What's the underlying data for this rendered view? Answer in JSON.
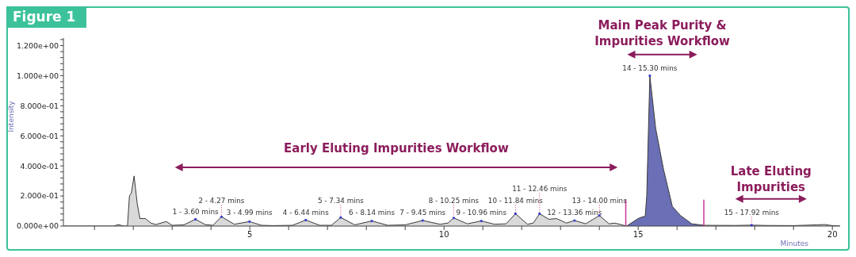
{
  "chart_data": {
    "type": "area",
    "title": "Figure 1",
    "xlabel": "Minutes",
    "ylabel": "Intensity",
    "xlim": [
      0.2,
      20.2
    ],
    "ylim": [
      0,
      1.25
    ],
    "xticks": [
      {
        "value": 1,
        "label": null
      },
      {
        "value": 2,
        "label": null
      },
      {
        "value": 3,
        "label": null
      },
      {
        "value": 4,
        "label": null
      },
      5,
      {
        "value": 6,
        "label": null
      },
      {
        "value": 7,
        "label": null
      },
      {
        "value": 8,
        "label": null
      },
      {
        "value": 9,
        "label": null
      },
      10,
      {
        "value": 11,
        "label": null
      },
      {
        "value": 12,
        "label": null
      },
      {
        "value": 13,
        "label": null
      },
      {
        "value": 14,
        "label": null
      },
      15,
      {
        "value": 16,
        "label": null
      },
      {
        "value": 17,
        "label": null
      },
      {
        "value": 18,
        "label": null
      },
      {
        "value": 19,
        "label": null
      },
      20
    ],
    "yticks": [
      {
        "value": 0,
        "label": "0.000e+00"
      },
      {
        "value": 0.04,
        "label": null
      },
      {
        "value": 0.08,
        "label": null
      },
      {
        "value": 0.12,
        "label": null
      },
      {
        "value": 0.16,
        "label": null
      },
      {
        "value": 0.2,
        "label": "2.000e-01"
      },
      {
        "value": 0.24,
        "label": null
      },
      {
        "value": 0.28,
        "label": null
      },
      {
        "value": 0.32,
        "label": null
      },
      {
        "value": 0.36,
        "label": null
      },
      {
        "value": 0.4,
        "label": "4.000e-01"
      },
      {
        "value": 0.44,
        "label": null
      },
      {
        "value": 0.48,
        "label": null
      },
      {
        "value": 0.52,
        "label": null
      },
      {
        "value": 0.56,
        "label": null
      },
      {
        "value": 0.6,
        "label": "6.000e-01"
      },
      {
        "value": 0.64,
        "label": null
      },
      {
        "value": 0.68,
        "label": null
      },
      {
        "value": 0.72,
        "label": null
      },
      {
        "value": 0.76,
        "label": null
      },
      {
        "value": 0.8,
        "label": "8.000e-01"
      },
      {
        "value": 0.84,
        "label": null
      },
      {
        "value": 0.88,
        "label": null
      },
      {
        "value": 0.92,
        "label": null
      },
      {
        "value": 0.96,
        "label": null
      },
      {
        "value": 1.0,
        "label": "1.000e+00"
      },
      {
        "value": 1.04,
        "label": null
      },
      {
        "value": 1.08,
        "label": null
      },
      {
        "value": 1.12,
        "label": null
      },
      {
        "value": 1.16,
        "label": null
      },
      {
        "value": 1.2,
        "label": "1.200e+00"
      },
      {
        "value": 1.24,
        "label": null
      }
    ],
    "series": [
      {
        "color": "#d9d9d9",
        "x": [
          0.2,
          1.5,
          1.61,
          1.75,
          1.85,
          1.9,
          1.95,
          2.02,
          2.1,
          2.17,
          2.31,
          2.45,
          2.58,
          2.85,
          3.0,
          3.3,
          3.6,
          3.85,
          4.05,
          4.27,
          4.6,
          4.99,
          5.3,
          5.6,
          6.1,
          6.44,
          6.8,
          7.1,
          7.34,
          7.7,
          8.14,
          8.55,
          9.0,
          9.45,
          9.9,
          10.1,
          10.25,
          10.6,
          10.96,
          11.3,
          11.6,
          11.84,
          12.15,
          12.3,
          12.46,
          12.7,
          12.9,
          13.15,
          13.36,
          13.65,
          14.0,
          14.25,
          14.4,
          14.7,
          15.5,
          16.7,
          17.5,
          17.92,
          18.3,
          19.0,
          19.6,
          19.8,
          20.0,
          20.2
        ],
        "values": [
          0,
          0,
          0.01,
          0,
          0,
          0.2,
          0.22,
          0.333,
          0.15,
          0.05,
          0.05,
          0.02,
          0.01,
          0.03,
          0.005,
          0.008,
          0.045,
          0.01,
          0.005,
          0.062,
          0.012,
          0.03,
          0.005,
          0.003,
          0.005,
          0.04,
          0.005,
          0.005,
          0.057,
          0.008,
          0.034,
          0.005,
          0.008,
          0.037,
          0.012,
          0.02,
          0.054,
          0.015,
          0.034,
          0.012,
          0.015,
          0.082,
          0.012,
          0.02,
          0.082,
          0.045,
          0.05,
          0.02,
          0.037,
          0.015,
          0.07,
          0.015,
          0.02,
          0,
          null,
          0.005,
          0.004,
          0.006,
          0.004,
          0.003,
          0.008,
          0.01,
          0.003,
          0
        ]
      },
      {
        "color": "#6b6fb5",
        "x": [
          14.7,
          15.0,
          15.1,
          15.18,
          15.22,
          15.3,
          15.45,
          15.65,
          15.88,
          16.09,
          16.38,
          16.7
        ],
        "values": [
          0,
          0.05,
          0.06,
          0.065,
          0.2,
          1.0,
          0.65,
          0.38,
          0.13,
          0.07,
          0.015,
          0.005
        ]
      }
    ],
    "ref_lines": [
      {
        "axis": "x",
        "value": 14.68,
        "color": "#cc3399"
      },
      {
        "axis": "x",
        "value": 16.69,
        "color": "#cc3399"
      }
    ],
    "annotations": [
      {
        "text": "1 - 3.60 mins",
        "x": 3.6,
        "y": 0.045
      },
      {
        "text": "2 - 4.27 mins",
        "x": 4.27,
        "y": 0.062
      },
      {
        "text": "3 - 4.99 mins",
        "x": 4.99,
        "y": 0.03
      },
      {
        "text": "4 - 6.44 mins",
        "x": 6.44,
        "y": 0.04
      },
      {
        "text": "5 - 7.34 mins",
        "x": 7.34,
        "y": 0.057
      },
      {
        "text": "6 - 8.14 mins",
        "x": 8.14,
        "y": 0.034
      },
      {
        "text": "7 - 9.45 mins",
        "x": 9.45,
        "y": 0.037
      },
      {
        "text": "8 - 10.25 mins",
        "x": 10.25,
        "y": 0.054
      },
      {
        "text": "9 - 10.96 mins",
        "x": 10.96,
        "y": 0.034
      },
      {
        "text": "10 - 11.84 mins",
        "x": 11.84,
        "y": 0.082
      },
      {
        "text": "11 - 12.46 mins",
        "x": 12.46,
        "y": 0.082
      },
      {
        "text": "12 - 13.36 mins",
        "x": 13.36,
        "y": 0.037
      },
      {
        "text": "13 - 14.00 mins",
        "x": 14.0,
        "y": 0.07
      },
      {
        "text": "14 - 15.30 mins",
        "x": 15.3,
        "y": 1.0
      },
      {
        "text": "15 - 17.92 mins",
        "x": 17.92,
        "y": 0.006
      },
      "Early Eluting Impurities Workflow",
      "Main Peak Purity & Impurities Workflow",
      "Late Eluting Impurities"
    ]
  }
}
